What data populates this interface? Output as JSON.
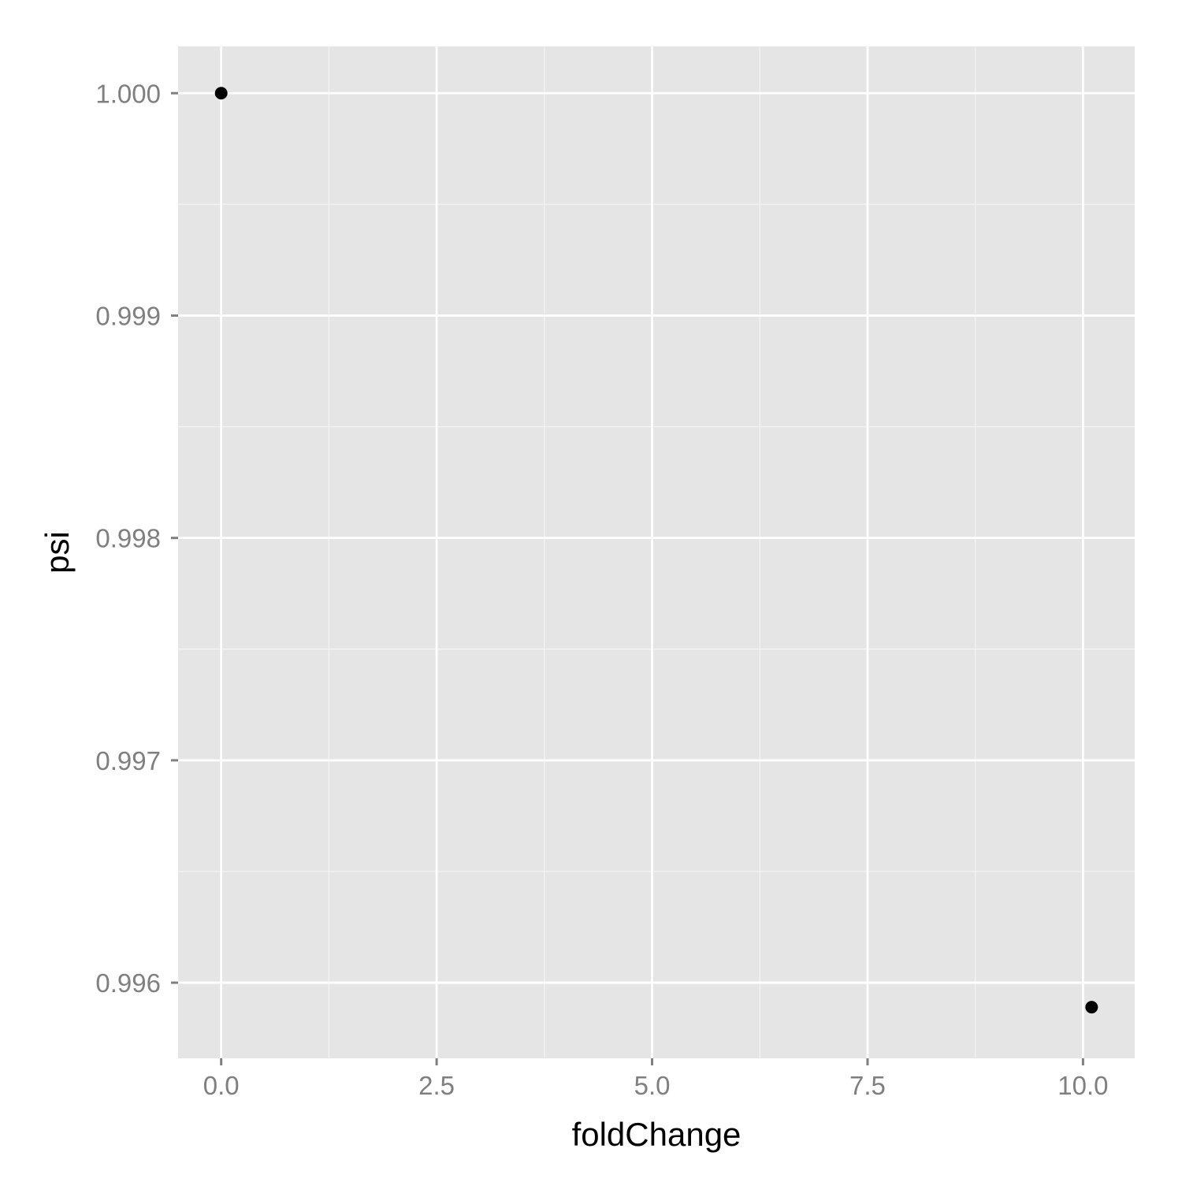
{
  "chart_data": {
    "type": "scatter",
    "title": "",
    "xlabel": "foldChange",
    "ylabel": "psi",
    "xlim": [
      -0.5,
      10.6
    ],
    "ylim": [
      0.99566,
      1.00021
    ],
    "x_ticks": [
      0.0,
      2.5,
      5.0,
      7.5,
      10.0
    ],
    "x_tick_labels": [
      "0.0",
      "2.5",
      "5.0",
      "7.5",
      "10.0"
    ],
    "y_ticks": [
      0.996,
      0.997,
      0.998,
      0.999,
      1.0
    ],
    "y_tick_labels": [
      "0.996",
      "0.997",
      "0.998",
      "0.999",
      "1.000"
    ],
    "grid": true,
    "legend": "none",
    "points": [
      {
        "x": 0.0,
        "y": 1.0
      },
      {
        "x": 10.1,
        "y": 0.99589
      }
    ],
    "colors": {
      "panel": "#e5e5e5",
      "grid_major": "#ffffff",
      "grid_minor": "#f2f2f2",
      "point": "#000000",
      "tick": "#7f7f7f"
    }
  }
}
